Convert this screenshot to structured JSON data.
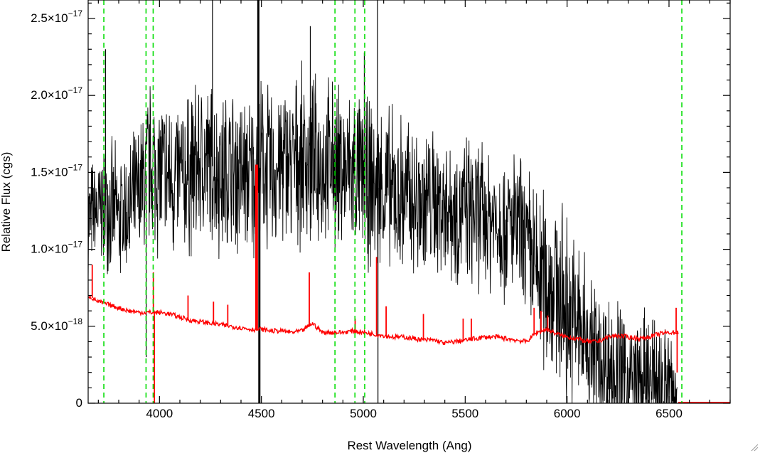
{
  "chart_data": {
    "type": "line",
    "xlabel": "Rest Wavelength (Ang)",
    "ylabel": "Relative Flux (cgs)",
    "xlim": [
      3650,
      6800
    ],
    "ylim": [
      0,
      2.62e-17
    ],
    "x_ticks": [
      4000,
      4500,
      5000,
      5500,
      6000,
      6500
    ],
    "x_tick_labels": [
      "4000",
      "4500",
      "5000",
      "5500",
      "6000",
      "6500"
    ],
    "y_ticks": [
      0,
      5e-18,
      1e-17,
      1.5e-17,
      2e-17,
      2.5e-17
    ],
    "y_tick_labels": [
      {
        "mant": "0",
        "exp": ""
      },
      {
        "mant": "5.0×10",
        "exp": "−18"
      },
      {
        "mant": "1.0×10",
        "exp": "−17"
      },
      {
        "mant": "1.5×10",
        "exp": "−17"
      },
      {
        "mant": "2.0×10",
        "exp": "−17"
      },
      {
        "mant": "2.5×10",
        "exp": "−17"
      }
    ],
    "grid": false,
    "series": [
      {
        "color": "#000000",
        "style": "noisy-spectrum",
        "x": [
          3650,
          3700,
          3750,
          3800,
          3850,
          3900,
          3950,
          4000,
          4050,
          4100,
          4150,
          4200,
          4250,
          4300,
          4350,
          4400,
          4450,
          4500,
          4550,
          4600,
          4650,
          4700,
          4750,
          4800,
          4850,
          4900,
          4950,
          5000,
          5050,
          5100,
          5150,
          5200,
          5250,
          5300,
          5350,
          5400,
          5450,
          5500,
          5550,
          5600,
          5650,
          5700,
          5750,
          5800,
          5850,
          5900,
          5950,
          6000,
          6050,
          6100,
          6150,
          6200,
          6250,
          6300,
          6350,
          6400,
          6450,
          6500,
          6540
        ],
        "y": [
          1.2e-17,
          1.25e-17,
          1.3e-17,
          1.2e-17,
          1.25e-17,
          1.35e-17,
          1.55e-17,
          1.5e-17,
          1.45e-17,
          1.45e-17,
          1.5e-17,
          1.55e-17,
          1.55e-17,
          1.5e-17,
          1.5e-17,
          1.5e-17,
          1.45e-17,
          1.55e-17,
          1.5e-17,
          1.55e-17,
          1.55e-17,
          1.6e-17,
          1.55e-17,
          1.55e-17,
          1.55e-17,
          1.5e-17,
          1.5e-17,
          1.45e-17,
          1.4e-17,
          1.4e-17,
          1.35e-17,
          1.35e-17,
          1.3e-17,
          1.3e-17,
          1.3e-17,
          1.3e-17,
          1.25e-17,
          1.25e-17,
          1.25e-17,
          1.2e-17,
          1.2e-17,
          1.15e-17,
          1.15e-17,
          1e-17,
          8.5e-18,
          8e-18,
          7.5e-18,
          6e-18,
          5e-18,
          4e-18,
          3e-18,
          2.5e-18,
          2e-18,
          1.5e-18,
          1e-18,
          1e-18,
          1e-18,
          8e-19,
          5e-19
        ],
        "noise": [
          3e-18,
          3e-18,
          3.5e-18,
          3.5e-18,
          3.5e-18,
          4e-18,
          4.5e-18,
          4.5e-18,
          4.5e-18,
          4.5e-18,
          4.5e-18,
          4.5e-18,
          4.5e-18,
          4.5e-18,
          4.5e-18,
          4.5e-18,
          4.5e-18,
          4.5e-18,
          4.5e-18,
          4.5e-18,
          4.5e-18,
          4.5e-18,
          4.5e-18,
          4.5e-18,
          4.5e-18,
          4.5e-18,
          4.5e-18,
          4.5e-18,
          4.5e-18,
          4.5e-18,
          4.5e-18,
          4.5e-18,
          4.5e-18,
          4.5e-18,
          4e-18,
          4e-18,
          4e-18,
          4e-18,
          4e-18,
          4e-18,
          4e-18,
          4e-18,
          4e-18,
          4.5e-18,
          5e-18,
          5e-18,
          5e-18,
          5e-18,
          5e-18,
          4.5e-18,
          4e-18,
          4e-18,
          4e-18,
          4e-18,
          4e-18,
          4e-18,
          4e-18,
          4e-18,
          3e-18
        ],
        "spikes": [
          {
            "x": 3735,
            "y": 2.3e-17
          },
          {
            "x": 3935,
            "y": 3e-18
          },
          {
            "x": 4260,
            "y": 2.62e-17
          },
          {
            "x": 4485,
            "y": 2.62e-17
          },
          {
            "x": 4490,
            "y": 0
          },
          {
            "x": 4740,
            "y": 2.45e-17
          },
          {
            "x": 5005,
            "y": 2.28e-17
          },
          {
            "x": 5070,
            "y": 2.62e-17
          },
          {
            "x": 5072,
            "y": 0
          }
        ]
      },
      {
        "color": "#ff0000",
        "style": "model",
        "x": [
          3650,
          3700,
          3750,
          3800,
          3850,
          3900,
          3950,
          4000,
          4050,
          4100,
          4150,
          4200,
          4250,
          4300,
          4350,
          4400,
          4450,
          4500,
          4550,
          4600,
          4650,
          4700,
          4750,
          4800,
          4850,
          4900,
          4950,
          5000,
          5050,
          5100,
          5150,
          5200,
          5250,
          5300,
          5350,
          5400,
          5450,
          5500,
          5550,
          5600,
          5650,
          5700,
          5750,
          5800,
          5850,
          5900,
          5950,
          6000,
          6050,
          6100,
          6150,
          6200,
          6250,
          6300,
          6350,
          6400,
          6450,
          6500,
          6530,
          6545
        ],
        "y": [
          7e-18,
          6.6e-18,
          6.4e-18,
          6.2e-18,
          6e-18,
          5.9e-18,
          5.9e-18,
          5.9e-18,
          5.8e-18,
          5.6e-18,
          5.4e-18,
          5.3e-18,
          5.2e-18,
          5.1e-18,
          5e-18,
          4.9e-18,
          4.8e-18,
          4.8e-18,
          4.7e-18,
          4.7e-18,
          4.6e-18,
          4.7e-18,
          5.2e-18,
          4.6e-18,
          4.6e-18,
          4.6e-18,
          4.7e-18,
          4.6e-18,
          4.5e-18,
          4.4e-18,
          4.3e-18,
          4.3e-18,
          4.2e-18,
          4.1e-18,
          4.1e-18,
          3.9e-18,
          4e-18,
          4.1e-18,
          4.2e-18,
          4.3e-18,
          4.3e-18,
          4.2e-18,
          4.1e-18,
          4e-18,
          4.6e-18,
          4.8e-18,
          4.5e-18,
          4.3e-18,
          4.2e-18,
          4e-18,
          4e-18,
          4.3e-18,
          4.4e-18,
          4.3e-18,
          4.2e-18,
          4.3e-18,
          4.5e-18,
          4.6e-18,
          4.6e-18,
          4.6e-18
        ],
        "noise": 1.5e-19,
        "peaks": [
          {
            "x": 3670,
            "y": 9e-18
          },
          {
            "x": 3970,
            "y": 8.5e-18
          },
          {
            "x": 3975,
            "y": 0
          },
          {
            "x": 4140,
            "y": 7e-18
          },
          {
            "x": 4265,
            "y": 6.6e-18
          },
          {
            "x": 4335,
            "y": 6.4e-18
          },
          {
            "x": 4475,
            "y": 1.55e-17
          },
          {
            "x": 4478,
            "y": 1.55e-17
          },
          {
            "x": 4735,
            "y": 8.5e-18
          },
          {
            "x": 4960,
            "y": 5.5e-18
          },
          {
            "x": 5065,
            "y": 9.5e-18
          },
          {
            "x": 5112,
            "y": 6.3e-18
          },
          {
            "x": 5295,
            "y": 5.8e-18
          },
          {
            "x": 5490,
            "y": 5.5e-18
          },
          {
            "x": 5530,
            "y": 5.5e-18
          },
          {
            "x": 5838,
            "y": 6.2e-18
          },
          {
            "x": 5872,
            "y": 6e-18
          },
          {
            "x": 5905,
            "y": 5.7e-18
          },
          {
            "x": 6535,
            "y": 6.2e-18
          },
          {
            "x": 6540,
            "y": 2e-18
          }
        ],
        "tail": {
          "x": [
            6545,
            6800
          ],
          "y": 0
        }
      }
    ],
    "vertical_lines": {
      "color": "#00dd00",
      "style": "dashed",
      "x": [
        3727,
        3934,
        3969,
        4861,
        4959,
        5007,
        6563
      ]
    }
  },
  "window": {
    "resize_grip_icon": "resize-grip-icon"
  }
}
